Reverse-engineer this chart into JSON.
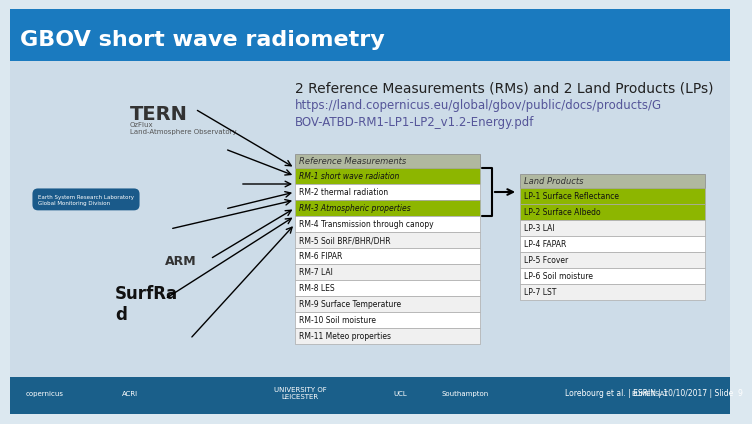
{
  "title": "GBOV short wave radiometry",
  "title_color": "#ffffff",
  "header_bg": "#1a7abf",
  "slide_bg": "#dce8f0",
  "main_title": "2 Reference Measurements (RMs) and 2 Land Products (LPs)",
  "url_text": "https://land.copernicus.eu/global/gbov/public/docs/products/G\nBOV-ATBD-RM1-LP1-LP2_v1.2-Energy.pdf",
  "rm_header": "Reference Measurements",
  "lp_header": "Land Products",
  "rm_items": [
    "RM-1 short wave radiation",
    "RM-2 thermal radiation",
    "RM-3 Atmospheric properties",
    "RM-4 Transmission through canopy",
    "RM-5 Soil BRF/BHR/DHR",
    "RM-6 FIPAR",
    "RM-7 LAI",
    "RM-8 LES",
    "RM-9 Surface Temperature",
    "RM-10 Soil moisture",
    "RM-11 Meteo properties"
  ],
  "rm_highlighted": [
    0,
    2
  ],
  "lp_items": [
    "LP-1 Surface Reflectance",
    "LP-2 Surface Albedo",
    "LP-3 LAI",
    "LP-4 FAPAR",
    "LP-5 Fcover",
    "LP-6 Soil moisture",
    "LP-7 LST"
  ],
  "lp_highlighted": [
    0,
    1
  ],
  "highlight_color": "#8db600",
  "header_box_color": "#b0b8a0",
  "row_bg_light": "#f0f0f0",
  "row_bg_white": "#ffffff",
  "footer_bg": "#1a5f8a",
  "footer_text": "Lorebourg et al. | ESRIN | 10/10/2017 | Slide  9"
}
